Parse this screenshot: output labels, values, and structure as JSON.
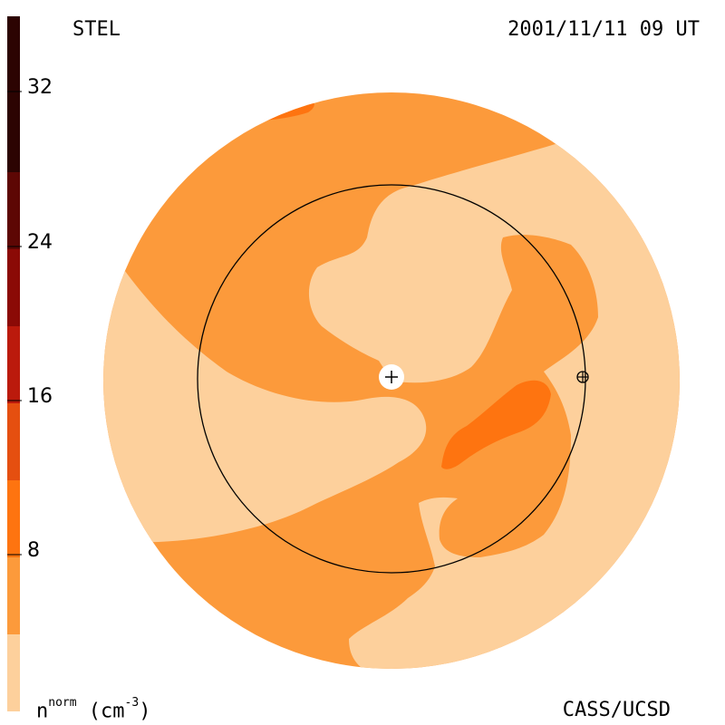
{
  "header": {
    "instrument": "STEL",
    "timestamp": "2001/11/11 09 UT"
  },
  "footer": {
    "credit": "CASS/UCSD",
    "unit_base": "n",
    "unit_super": "norm",
    "unit_suffix": " (cm",
    "unit_exp": "-3",
    "unit_close": ")"
  },
  "colorbar": {
    "ticks": [
      "8",
      "16",
      "24",
      "32"
    ],
    "colors": [
      "#fdd09c",
      "#fc9a3b",
      "#fe7410",
      "#e54f10",
      "#bb1a0c",
      "#8b0a06",
      "#5d0704",
      "#2c0402"
    ]
  },
  "map": {
    "colors": {
      "lightest": "#fdd09c",
      "light": "#fc9a3b",
      "medium": "#fe7410",
      "orbit": "#000000",
      "sun": "#ffffff"
    },
    "sun_symbol": "+",
    "earth_symbol": "⊕"
  }
}
